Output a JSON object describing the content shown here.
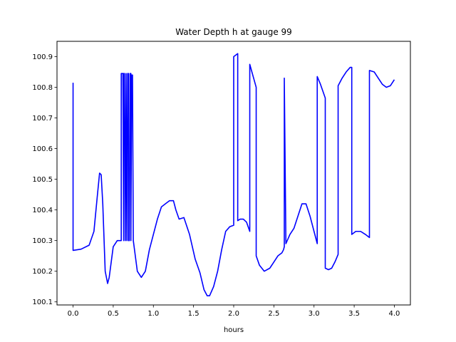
{
  "chart_data": {
    "type": "line",
    "title": "Water Depth h at gauge 99",
    "xlabel": "hours",
    "ylabel": "",
    "xlim": [
      -0.2,
      4.2
    ],
    "ylim": [
      100.09,
      100.95
    ],
    "xticks": [
      0.0,
      0.5,
      1.0,
      1.5,
      2.0,
      2.5,
      3.0,
      3.5,
      4.0
    ],
    "xtick_labels": [
      "0.0",
      "0.5",
      "1.0",
      "1.5",
      "2.0",
      "2.5",
      "3.0",
      "3.5",
      "4.0"
    ],
    "yticks": [
      100.1,
      100.2,
      100.3,
      100.4,
      100.5,
      100.6,
      100.7,
      100.8,
      100.9
    ],
    "ytick_labels": [
      "100.1",
      "100.2",
      "100.3",
      "100.4",
      "100.5",
      "100.6",
      "100.7",
      "100.8",
      "100.9"
    ],
    "grid": false,
    "series": [
      {
        "color": "#0000ff",
        "x": [
          0.0,
          0.0,
          0.0,
          0.1,
          0.2,
          0.26,
          0.3,
          0.33,
          0.35,
          0.37,
          0.4,
          0.43,
          0.45,
          0.5,
          0.55,
          0.58,
          0.6,
          0.6,
          0.61,
          0.62,
          0.63,
          0.63,
          0.64,
          0.65,
          0.66,
          0.66,
          0.67,
          0.68,
          0.69,
          0.69,
          0.7,
          0.71,
          0.72,
          0.72,
          0.73,
          0.74,
          0.75,
          0.75,
          0.8,
          0.85,
          0.9,
          0.95,
          1.0,
          1.05,
          1.1,
          1.15,
          1.2,
          1.25,
          1.28,
          1.32,
          1.38,
          1.45,
          1.52,
          1.58,
          1.63,
          1.67,
          1.7,
          1.75,
          1.8,
          1.85,
          1.9,
          1.95,
          2.0,
          2.0,
          2.05,
          2.05,
          2.08,
          2.12,
          2.16,
          2.2,
          2.2,
          2.28,
          2.28,
          2.32,
          2.38,
          2.45,
          2.5,
          2.55,
          2.6,
          2.62,
          2.63,
          2.63,
          2.65,
          2.7,
          2.75,
          2.8,
          2.85,
          2.9,
          2.95,
          3.0,
          3.04,
          3.04,
          3.08,
          3.12,
          3.14,
          3.14,
          3.18,
          3.22,
          3.26,
          3.3,
          3.3,
          3.35,
          3.4,
          3.45,
          3.47,
          3.47,
          3.52,
          3.58,
          3.64,
          3.69,
          3.69,
          3.75,
          3.8,
          3.85,
          3.9,
          3.95,
          4.0
        ],
        "y": [
          100.815,
          100.27,
          100.268,
          100.272,
          100.285,
          100.33,
          100.44,
          100.52,
          100.515,
          100.42,
          100.2,
          100.16,
          100.18,
          100.28,
          100.3,
          100.3,
          100.3,
          100.845,
          100.845,
          100.845,
          100.3,
          100.845,
          100.845,
          100.3,
          100.845,
          100.845,
          100.3,
          100.845,
          100.845,
          100.3,
          100.3,
          100.845,
          100.845,
          100.3,
          100.84,
          100.84,
          100.3,
          100.3,
          100.2,
          100.18,
          100.2,
          100.27,
          100.32,
          100.37,
          100.41,
          100.42,
          100.43,
          100.43,
          100.4,
          100.37,
          100.375,
          100.32,
          100.24,
          100.195,
          100.14,
          100.12,
          100.12,
          100.15,
          100.2,
          100.27,
          100.33,
          100.345,
          100.35,
          100.9,
          100.91,
          100.365,
          100.37,
          100.37,
          100.36,
          100.33,
          100.875,
          100.8,
          100.25,
          100.22,
          100.2,
          100.21,
          100.23,
          100.25,
          100.26,
          100.27,
          100.28,
          100.83,
          100.29,
          100.32,
          100.34,
          100.38,
          100.42,
          100.42,
          100.38,
          100.33,
          100.29,
          100.835,
          100.81,
          100.78,
          100.765,
          100.21,
          100.205,
          100.21,
          100.23,
          100.255,
          100.805,
          100.83,
          100.85,
          100.865,
          100.865,
          100.32,
          100.33,
          100.33,
          100.32,
          100.31,
          100.855,
          100.85,
          100.83,
          100.81,
          100.8,
          100.805,
          100.825
        ]
      }
    ]
  }
}
